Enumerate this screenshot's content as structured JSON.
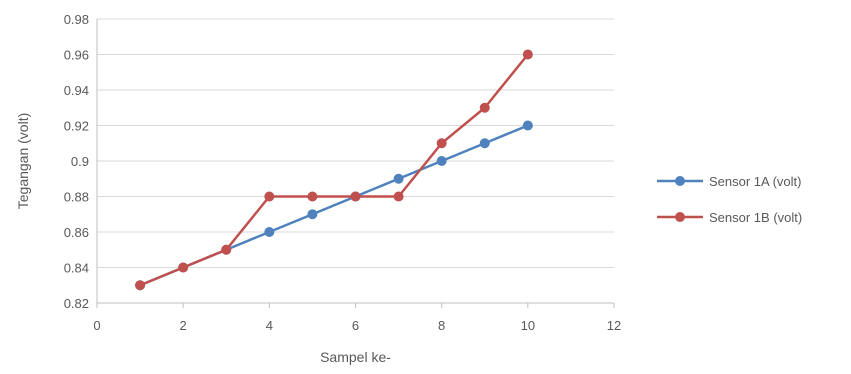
{
  "chart_data": {
    "type": "line",
    "title": "",
    "xlabel": "Sampel ke-",
    "ylabel": "Tegangan (volt)",
    "xlim": [
      0,
      12
    ],
    "ylim": [
      0.82,
      0.98
    ],
    "x_ticks": [
      "0",
      "2",
      "4",
      "6",
      "8",
      "10",
      "12"
    ],
    "y_ticks": [
      "0.82",
      "0.84",
      "0.86",
      "0.88",
      "0.9",
      "0.92",
      "0.94",
      "0.96",
      "0.98"
    ],
    "grid": "horizontal",
    "legend_position": "right",
    "x": [
      1,
      2,
      3,
      4,
      5,
      6,
      7,
      8,
      9,
      10
    ],
    "series": [
      {
        "name": "Sensor 1A (volt)",
        "color": "#4f81bd",
        "values": [
          0.83,
          0.84,
          0.85,
          0.86,
          0.87,
          0.88,
          0.89,
          0.9,
          0.91,
          0.92
        ]
      },
      {
        "name": "Sensor 1B (volt)",
        "color": "#c0504d",
        "values": [
          0.83,
          0.84,
          0.85,
          0.88,
          0.88,
          0.88,
          0.88,
          0.91,
          0.93,
          0.96
        ]
      }
    ]
  }
}
